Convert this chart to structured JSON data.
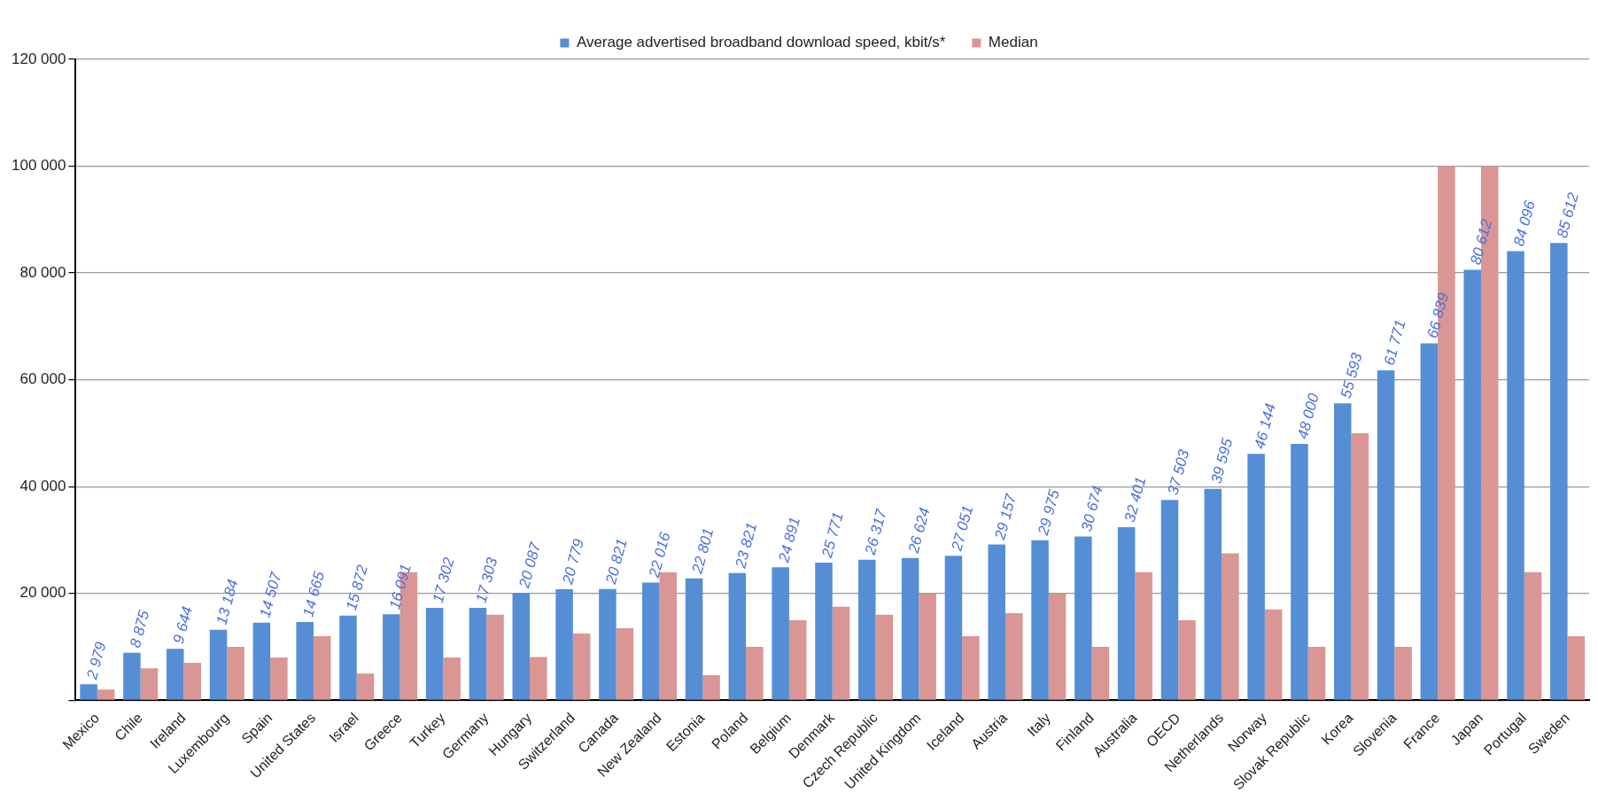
{
  "chart_data": {
    "type": "bar",
    "categories": [
      "Mexico",
      "Chile",
      "Ireland",
      "Luxembourg",
      "Spain",
      "United States",
      "Israel",
      "Greece",
      "Turkey",
      "Germany",
      "Hungary",
      "Switzerland",
      "Canada",
      "New Zealand",
      "Estonia",
      "Poland",
      "Belgium",
      "Denmark",
      "Czech Republic",
      "United Kingdom",
      "Iceland",
      "Austria",
      "Italy",
      "Finland",
      "Australia",
      "OECD",
      "Netherlands",
      "Norway",
      "Slovak Republic",
      "Korea",
      "Slovenia",
      "France",
      "Japan",
      "Portugal",
      "Sweden"
    ],
    "series": [
      {
        "name": "Average advertised broadband download speed, kbit/s*",
        "color": "#558ed5",
        "values": [
          2979,
          8875,
          9644,
          13184,
          14507,
          14665,
          15872,
          16091,
          17302,
          17303,
          20087,
          20779,
          20821,
          22016,
          22801,
          23821,
          24891,
          25771,
          26317,
          26624,
          27051,
          29157,
          29975,
          30674,
          32401,
          37503,
          39595,
          46144,
          48000,
          55593,
          61771,
          66839,
          80612,
          84096,
          85612
        ],
        "value_labels": [
          "2 979",
          "8 875",
          "9 644",
          "13 184",
          "14 507",
          "14 665",
          "15 872",
          "16 091",
          "17 302",
          "17 303",
          "20 087",
          "20 779",
          "20 821",
          "22 016",
          "22 801",
          "23 821",
          "24 891",
          "25 771",
          "26 317",
          "26 624",
          "27 051",
          "29 157",
          "29 975",
          "30 674",
          "32 401",
          "37 503",
          "39 595",
          "46 144",
          "48 000",
          "55 593",
          "61 771",
          "66 839",
          "80 612",
          "84 096",
          "85 612"
        ]
      },
      {
        "name": "Median",
        "color": "#d99694",
        "values": [
          2000,
          6000,
          7000,
          10000,
          8000,
          12000,
          5000,
          24000,
          8000,
          16000,
          8100,
          12500,
          13500,
          24000,
          4700,
          10000,
          15000,
          17500,
          16000,
          20000,
          12000,
          16300,
          20000,
          10000,
          24000,
          15000,
          27500,
          17000,
          10000,
          50000,
          10000,
          100000,
          100000,
          24000,
          12000
        ]
      }
    ],
    "ylim": [
      0,
      120000
    ],
    "yticks": [
      {
        "value": 0,
        "label": null
      },
      {
        "value": 20000,
        "label": "20 000"
      },
      {
        "value": 40000,
        "label": "40 000"
      },
      {
        "value": 60000,
        "label": "60 000"
      },
      {
        "value": 80000,
        "label": "80 000"
      },
      {
        "value": 100000,
        "label": "100 000"
      },
      {
        "value": 120000,
        "label": "120 000"
      }
    ],
    "grid": "y",
    "legend": "top"
  }
}
